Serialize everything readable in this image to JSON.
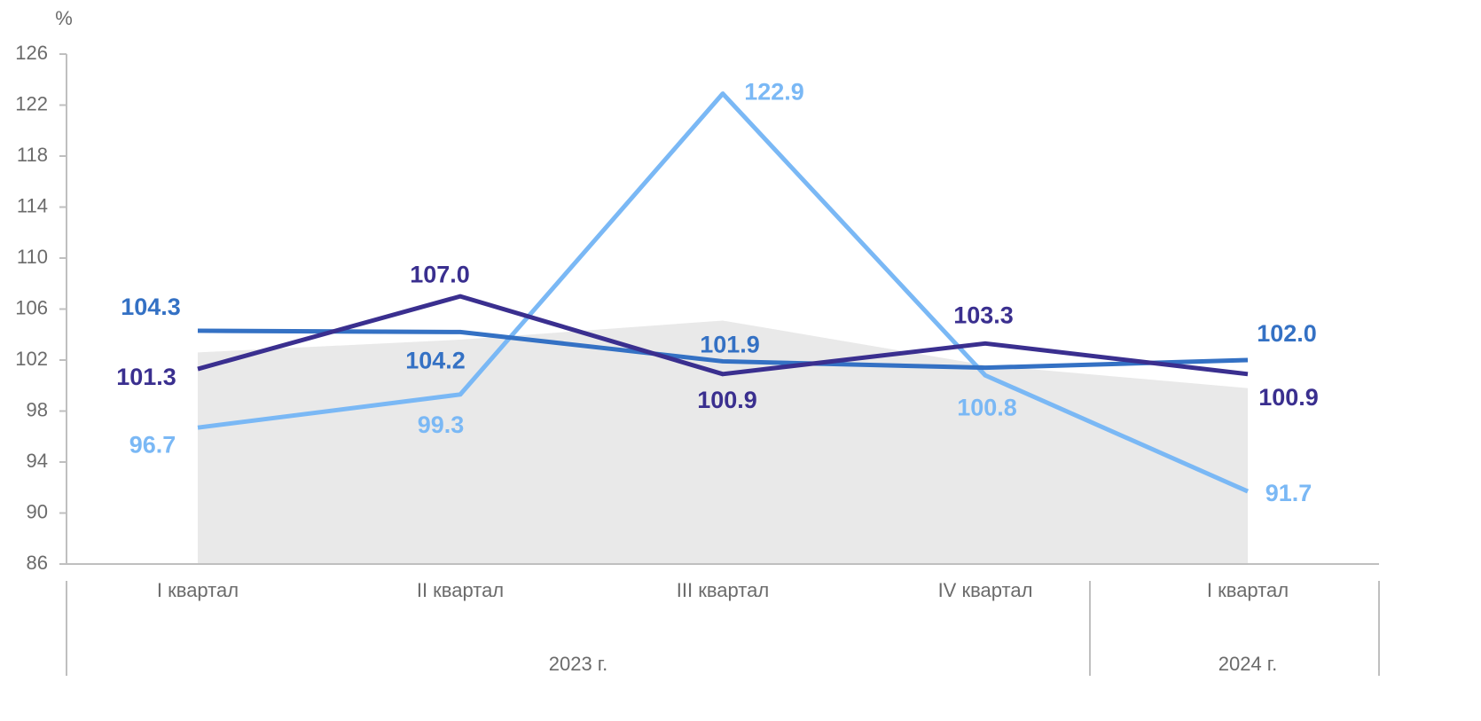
{
  "chart_data": {
    "type": "line",
    "y_unit_label": "%",
    "categories": [
      "I квартал",
      "II квартал",
      "III квартал",
      "IV квартал",
      "I квартал"
    ],
    "groups": [
      {
        "label": "2023 г.",
        "span": [
          0,
          3
        ]
      },
      {
        "label": "2024 г.",
        "span": [
          4,
          4
        ]
      }
    ],
    "ylim": [
      86,
      126
    ],
    "yticks": [
      86,
      90,
      94,
      98,
      102,
      106,
      110,
      114,
      118,
      122,
      126
    ],
    "area": {
      "color": "#e9e9e9",
      "values": [
        102.6,
        103.6,
        105.1,
        101.6,
        99.8
      ]
    },
    "series": [
      {
        "color": "#7ab8f5",
        "values": [
          96.7,
          99.3,
          122.9,
          100.8,
          91.7
        ],
        "value_labels": [
          "96.7",
          "99.3",
          "122.9",
          "100.8",
          "91.7"
        ]
      },
      {
        "color": "#3471c4",
        "values": [
          104.3,
          104.2,
          101.9,
          101.4,
          102.0
        ],
        "value_labels": [
          "104.3",
          "104.2",
          "101.9",
          null,
          "102.0"
        ]
      },
      {
        "color": "#3a2f8f",
        "values": [
          101.3,
          107.0,
          100.9,
          103.3,
          100.9
        ],
        "value_labels": [
          "101.3",
          "107.0",
          "100.9",
          "103.3",
          "100.9"
        ]
      }
    ]
  }
}
